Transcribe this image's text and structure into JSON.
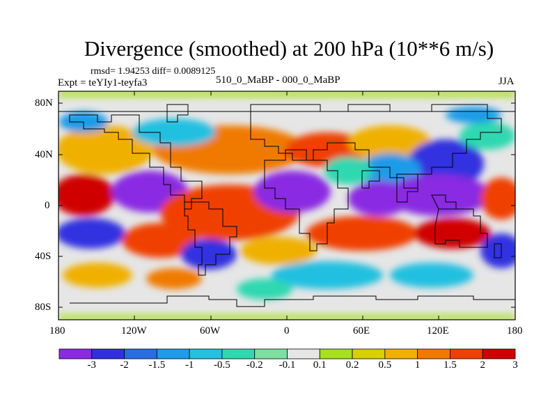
{
  "title": "Divergence (smoothed) at 200 hPa (10**6 m/s)",
  "stats": "rmsd= 1.94253 diff= 0.0089125",
  "left_label": "Expt = teYIy1-teyfa3",
  "center_label": "510_0_MaBP - 000_0_MaBP",
  "right_label": "JJA",
  "y_ticks": [
    "80N",
    "40N",
    "0",
    "40S",
    "80S"
  ],
  "x_ticks": [
    "180",
    "120W",
    "60W",
    "0",
    "60E",
    "120E",
    "180"
  ],
  "colorbar": {
    "labels": [
      "-3",
      "-2",
      "-1.5",
      "-1",
      "-0.5",
      "-0.2",
      "-0.1",
      "0.1",
      "0.2",
      "0.5",
      "1",
      "1.5",
      "2",
      "3"
    ],
    "colors": [
      "#8a2be2",
      "#3030e0",
      "#2a6de0",
      "#1f9be8",
      "#24c0e0",
      "#2ed8b0",
      "#7ee0a0",
      "#e6e6e6",
      "#a6e01e",
      "#d8d000",
      "#f0b000",
      "#f07a00",
      "#ef4000",
      "#d00000"
    ]
  },
  "colors": {
    "neutral": "#e6e6e6",
    "coast": "#000000"
  }
}
